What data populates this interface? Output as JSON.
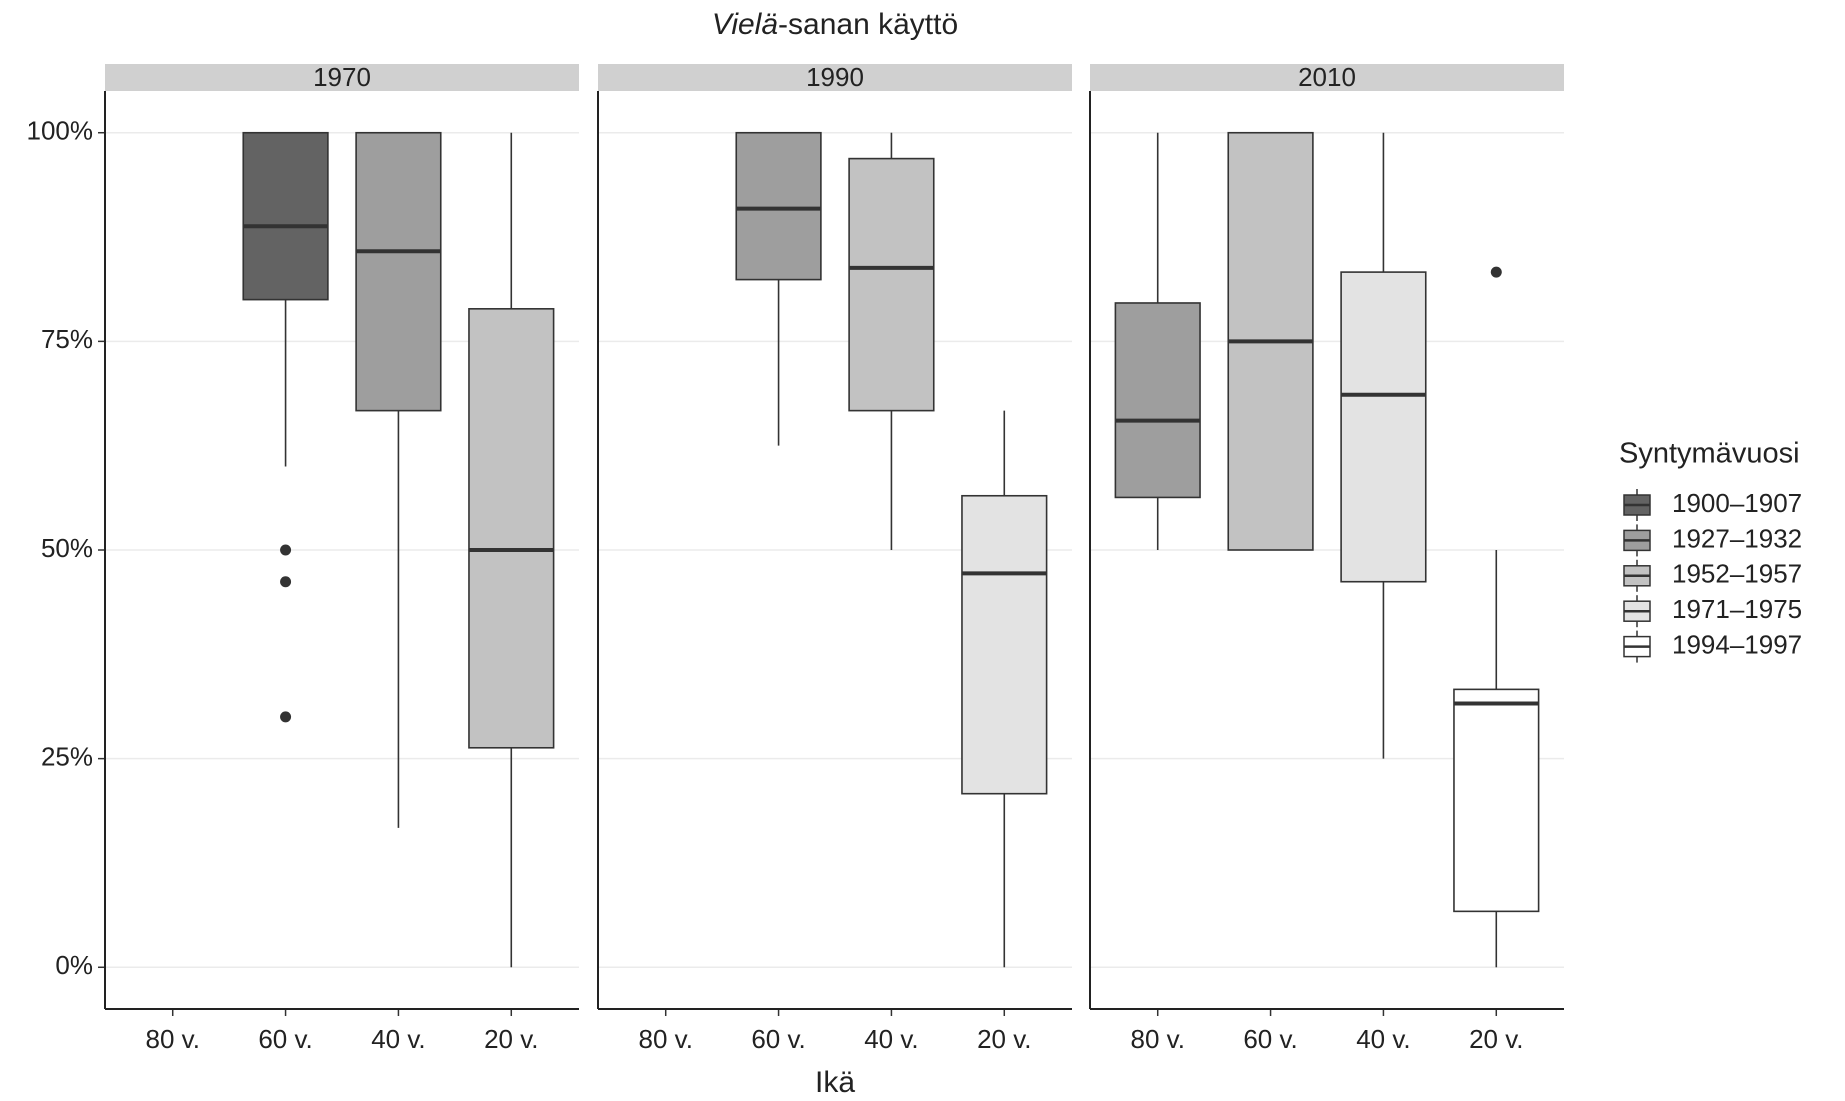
{
  "chart_data": {
    "type": "boxplot",
    "title": [
      "Vielä",
      "-sanan käyttö"
    ],
    "xlabel": "Ikä",
    "legend_title": "Syntymävuosi",
    "categories": [
      "80 v.",
      "60 v.",
      "40 v.",
      "20 v."
    ],
    "ylim": [
      -5,
      105
    ],
    "yticks": [
      {
        "value": 0,
        "label": "0%"
      },
      {
        "value": 25,
        "label": "25%"
      },
      {
        "value": 50,
        "label": "50%"
      },
      {
        "value": 75,
        "label": "75%"
      },
      {
        "value": 100,
        "label": "100%"
      }
    ],
    "grid": true,
    "series": [
      {
        "name": "1900–1907",
        "color": "#636363"
      },
      {
        "name": "1927–1932",
        "color": "#9e9e9e"
      },
      {
        "name": "1952–1957",
        "color": "#c2c2c2"
      },
      {
        "name": "1971–1975",
        "color": "#e3e3e3"
      },
      {
        "name": "1994–1997",
        "color": "#ffffff"
      }
    ],
    "facets": [
      {
        "label": "1970",
        "boxes": [
          {
            "category": "60 v.",
            "series": "1900–1907",
            "whisker_low": 60,
            "q1": 80,
            "median": 88.8,
            "q3": 100,
            "whisker_high": 100,
            "outliers": [
              50,
              46.2,
              30
            ]
          },
          {
            "category": "40 v.",
            "series": "1927–1932",
            "whisker_low": 16.7,
            "q1": 66.7,
            "median": 85.8,
            "q3": 100,
            "whisker_high": 100,
            "outliers": []
          },
          {
            "category": "20 v.",
            "series": "1952–1957",
            "whisker_low": 0,
            "q1": 26.3,
            "median": 50,
            "q3": 78.9,
            "whisker_high": 100,
            "outliers": []
          }
        ]
      },
      {
        "label": "1990",
        "boxes": [
          {
            "category": "60 v.",
            "series": "1927–1932",
            "whisker_low": 62.5,
            "q1": 82.4,
            "median": 90.9,
            "q3": 100,
            "whisker_high": 100,
            "outliers": []
          },
          {
            "category": "40 v.",
            "series": "1952–1957",
            "whisker_low": 50,
            "q1": 66.7,
            "median": 83.8,
            "q3": 96.9,
            "whisker_high": 100,
            "outliers": []
          },
          {
            "category": "20 v.",
            "series": "1971–1975",
            "whisker_low": 0,
            "q1": 20.8,
            "median": 47.2,
            "q3": 56.5,
            "whisker_high": 66.7,
            "outliers": []
          }
        ]
      },
      {
        "label": "2010",
        "boxes": [
          {
            "category": "80 v.",
            "series": "1927–1932",
            "whisker_low": 50,
            "q1": 56.3,
            "median": 65.5,
            "q3": 79.6,
            "whisker_high": 100,
            "outliers": []
          },
          {
            "category": "60 v.",
            "series": "1952–1957",
            "whisker_low": 50,
            "q1": 50,
            "median": 75,
            "q3": 100,
            "whisker_high": 100,
            "outliers": []
          },
          {
            "category": "40 v.",
            "series": "1971–1975",
            "whisker_low": 25,
            "q1": 46.2,
            "median": 68.6,
            "q3": 83.3,
            "whisker_high": 100,
            "outliers": []
          },
          {
            "category": "20 v.",
            "series": "1994–1997",
            "whisker_low": 0,
            "q1": 6.7,
            "median": 31.6,
            "q3": 33.3,
            "whisker_high": 50,
            "outliers": [
              83.3
            ]
          }
        ]
      }
    ]
  }
}
